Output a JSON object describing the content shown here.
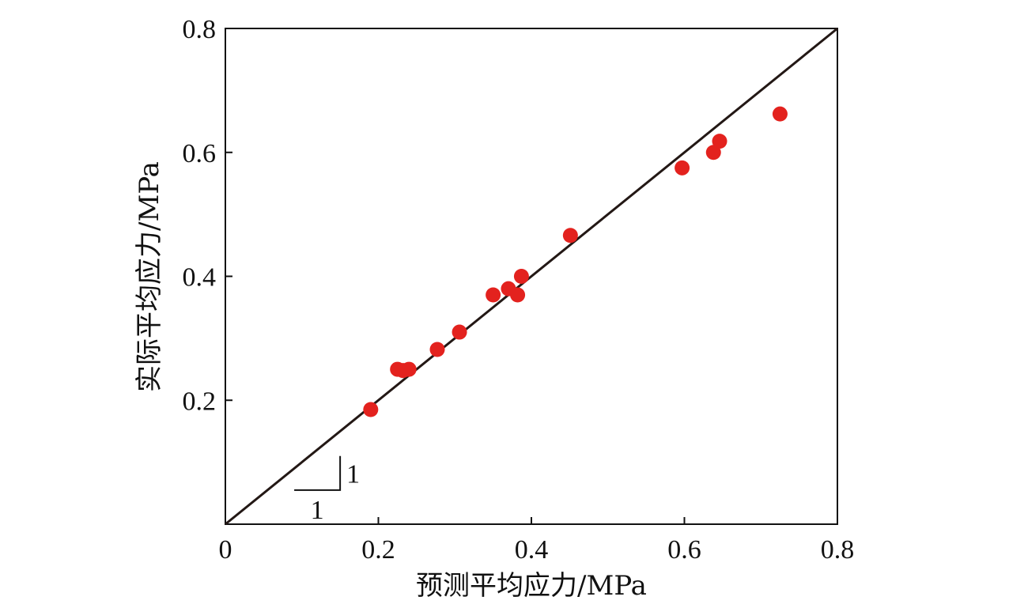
{
  "chart_data": {
    "type": "scatter",
    "title": "",
    "xlabel": "预测平均应力/MPa",
    "ylabel": "实际平均应力/MPa",
    "xlim": [
      0,
      0.8
    ],
    "ylim": [
      0,
      0.8
    ],
    "x_ticks": [
      {
        "value": 0,
        "label": "0"
      },
      {
        "value": 0.2,
        "label": "0.2"
      },
      {
        "value": 0.4,
        "label": "0.4"
      },
      {
        "value": 0.6,
        "label": "0.6"
      },
      {
        "value": 0.8,
        "label": "0.8"
      }
    ],
    "y_ticks": [
      {
        "value": 0.2,
        "label": "0.2"
      },
      {
        "value": 0.4,
        "label": "0.4"
      },
      {
        "value": 0.6,
        "label": "0.6"
      },
      {
        "value": 0.8,
        "label": "0.8"
      }
    ],
    "grid": false,
    "reference_line": {
      "from": [
        0,
        0
      ],
      "to": [
        0.8,
        0.8
      ],
      "color": "#231815"
    },
    "slope_annotation": {
      "rise_label": "1",
      "run_label": "1"
    },
    "marker_color": "#e3221e",
    "points": [
      {
        "x": 0.19,
        "y": 0.185
      },
      {
        "x": 0.225,
        "y": 0.25
      },
      {
        "x": 0.232,
        "y": 0.248
      },
      {
        "x": 0.24,
        "y": 0.25
      },
      {
        "x": 0.277,
        "y": 0.282
      },
      {
        "x": 0.306,
        "y": 0.31
      },
      {
        "x": 0.35,
        "y": 0.37
      },
      {
        "x": 0.37,
        "y": 0.38
      },
      {
        "x": 0.382,
        "y": 0.37
      },
      {
        "x": 0.387,
        "y": 0.4
      },
      {
        "x": 0.451,
        "y": 0.466
      },
      {
        "x": 0.597,
        "y": 0.575
      },
      {
        "x": 0.638,
        "y": 0.6
      },
      {
        "x": 0.646,
        "y": 0.618
      },
      {
        "x": 0.725,
        "y": 0.662
      }
    ]
  }
}
